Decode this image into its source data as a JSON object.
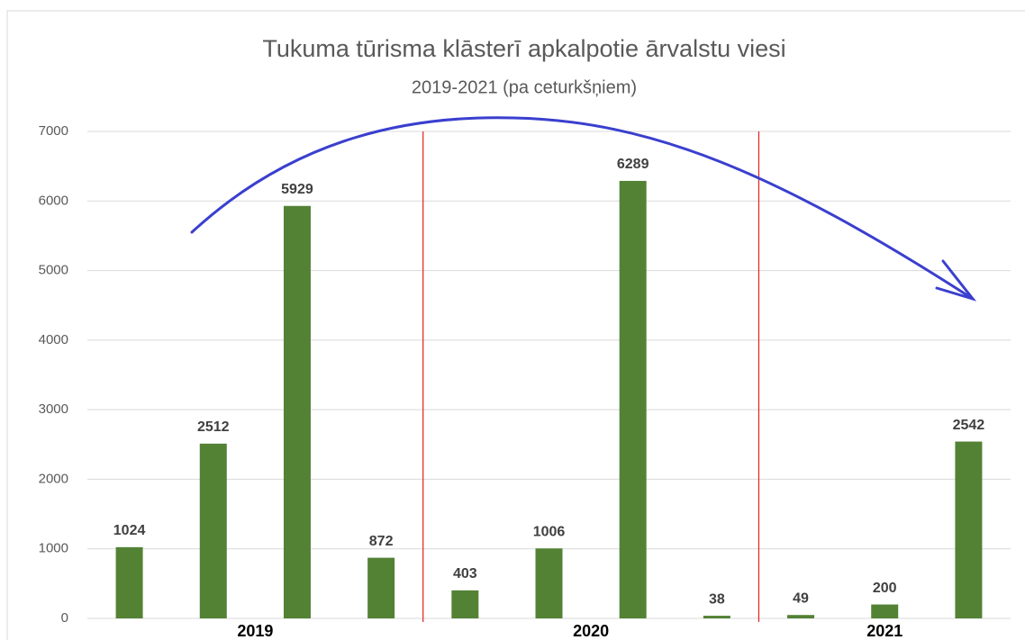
{
  "chart_data": {
    "type": "bar",
    "title": "Tukuma tūrisma klāsterī apkalpotie ārvalstu viesi",
    "subtitle": "2019-2021 (pa ceturkšņiem)",
    "categories": [
      null,
      null,
      null,
      null,
      null,
      null,
      null,
      null,
      null,
      null,
      null
    ],
    "category_groups": [
      {
        "label": "2019",
        "count": 4
      },
      {
        "label": "2020",
        "count": 4
      },
      {
        "label": "2021",
        "count": 3
      }
    ],
    "values": [
      1024,
      2512,
      5929,
      872,
      403,
      1006,
      6289,
      38,
      49,
      200,
      2542
    ],
    "color": "#548235",
    "ylim": [
      0,
      7000
    ],
    "yticks": [
      0,
      1000,
      2000,
      3000,
      4000,
      5000,
      6000,
      7000
    ],
    "grid": true
  }
}
